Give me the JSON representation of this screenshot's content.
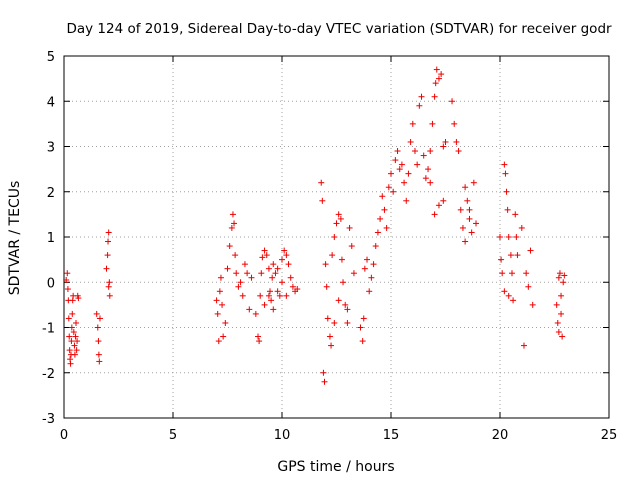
{
  "chart_data": {
    "type": "scatter",
    "title": "Day 124 of 2019, Sidereal Day-to-day VTEC variation (SDTVAR) for receiver godr",
    "xlabel": "GPS time / hours",
    "ylabel": "SDTVAR / TECUs",
    "xlim": [
      0,
      25
    ],
    "ylim": [
      -3,
      5
    ],
    "xticks": [
      0,
      5,
      10,
      15,
      20,
      25
    ],
    "yticks": [
      -3,
      -2,
      -1,
      0,
      1,
      2,
      3,
      4,
      5
    ],
    "grid": true,
    "marker": "+",
    "color": "#ff0000",
    "series": [
      {
        "name": "SDTVAR",
        "points": [
          [
            0.1,
            0.05
          ],
          [
            0.15,
            0.2
          ],
          [
            0.18,
            -0.15
          ],
          [
            0.2,
            -0.4
          ],
          [
            0.22,
            -0.8
          ],
          [
            0.24,
            -1.2
          ],
          [
            0.26,
            -1.5
          ],
          [
            0.28,
            -1.7
          ],
          [
            0.3,
            -1.8
          ],
          [
            0.32,
            -1.6
          ],
          [
            0.34,
            -1.3
          ],
          [
            0.36,
            -1.0
          ],
          [
            0.38,
            -0.7
          ],
          [
            0.4,
            -0.4
          ],
          [
            0.42,
            -0.3
          ],
          [
            0.45,
            -1.1
          ],
          [
            0.48,
            -1.4
          ],
          [
            0.5,
            -1.6
          ],
          [
            0.53,
            -1.2
          ],
          [
            0.55,
            -0.9
          ],
          [
            0.58,
            -1.5
          ],
          [
            0.6,
            -1.3
          ],
          [
            0.63,
            -0.3
          ],
          [
            0.66,
            -0.35
          ],
          [
            1.5,
            -0.7
          ],
          [
            1.55,
            -1.0
          ],
          [
            1.58,
            -1.3
          ],
          [
            1.6,
            -1.6
          ],
          [
            1.62,
            -1.75
          ],
          [
            1.65,
            -0.8
          ],
          [
            1.95,
            0.3
          ],
          [
            2.0,
            0.6
          ],
          [
            2.02,
            0.9
          ],
          [
            2.05,
            1.1
          ],
          [
            2.05,
            -0.1
          ],
          [
            2.08,
            0.0
          ],
          [
            2.1,
            -0.3
          ],
          [
            7.0,
            -0.4
          ],
          [
            7.05,
            -0.7
          ],
          [
            7.1,
            -1.3
          ],
          [
            7.15,
            -0.2
          ],
          [
            7.2,
            0.1
          ],
          [
            7.25,
            -0.5
          ],
          [
            7.3,
            -1.2
          ],
          [
            7.4,
            -0.9
          ],
          [
            7.5,
            0.3
          ],
          [
            7.6,
            0.8
          ],
          [
            7.7,
            1.2
          ],
          [
            7.75,
            1.5
          ],
          [
            7.8,
            1.3
          ],
          [
            7.85,
            0.6
          ],
          [
            7.9,
            0.2
          ],
          [
            8.0,
            -0.1
          ],
          [
            8.1,
            0.0
          ],
          [
            8.2,
            -0.3
          ],
          [
            8.3,
            0.4
          ],
          [
            8.4,
            0.2
          ],
          [
            8.5,
            -0.6
          ],
          [
            8.6,
            0.1
          ],
          [
            8.8,
            -0.7
          ],
          [
            8.9,
            -1.2
          ],
          [
            8.95,
            -1.3
          ],
          [
            9.0,
            -0.3
          ],
          [
            9.05,
            0.2
          ],
          [
            9.1,
            0.55
          ],
          [
            9.2,
            0.7
          ],
          [
            9.3,
            0.6
          ],
          [
            9.4,
            0.3
          ],
          [
            9.45,
            -0.2
          ],
          [
            9.5,
            -0.4
          ],
          [
            9.55,
            0.1
          ],
          [
            9.6,
            0.4
          ],
          [
            9.7,
            0.2
          ],
          [
            9.8,
            -0.2
          ],
          [
            9.9,
            -0.3
          ],
          [
            10.0,
            0.5
          ],
          [
            10.1,
            0.7
          ],
          [
            10.2,
            0.6
          ],
          [
            10.3,
            0.4
          ],
          [
            10.4,
            0.1
          ],
          [
            10.5,
            -0.1
          ],
          [
            10.6,
            -0.2
          ],
          [
            10.7,
            -0.15
          ],
          [
            9.2,
            -0.5
          ],
          [
            9.6,
            -0.6
          ],
          [
            10.2,
            -0.3
          ],
          [
            10.0,
            0.0
          ],
          [
            9.4,
            -0.3
          ],
          [
            9.8,
            0.3
          ],
          [
            11.8,
            2.2
          ],
          [
            11.85,
            1.8
          ],
          [
            11.9,
            -2.0
          ],
          [
            11.95,
            -2.2
          ],
          [
            12.0,
            0.4
          ],
          [
            12.05,
            -0.1
          ],
          [
            12.1,
            -0.8
          ],
          [
            12.2,
            -1.2
          ],
          [
            12.25,
            -1.4
          ],
          [
            12.3,
            0.6
          ],
          [
            12.4,
            1.0
          ],
          [
            12.5,
            1.3
          ],
          [
            12.6,
            1.5
          ],
          [
            12.7,
            1.4
          ],
          [
            12.75,
            0.5
          ],
          [
            12.8,
            0.0
          ],
          [
            12.9,
            -0.5
          ],
          [
            13.0,
            -0.6
          ],
          [
            13.1,
            1.2
          ],
          [
            13.2,
            0.8
          ],
          [
            13.3,
            0.2
          ],
          [
            12.4,
            -0.9
          ],
          [
            12.6,
            -0.4
          ],
          [
            13.0,
            -0.9
          ],
          [
            13.6,
            -1.0
          ],
          [
            13.7,
            -1.3
          ],
          [
            13.75,
            -0.8
          ],
          [
            13.8,
            0.3
          ],
          [
            13.9,
            0.5
          ],
          [
            14.0,
            -0.2
          ],
          [
            14.1,
            0.1
          ],
          [
            14.2,
            0.4
          ],
          [
            14.3,
            0.8
          ],
          [
            14.4,
            1.1
          ],
          [
            14.5,
            1.4
          ],
          [
            14.6,
            1.9
          ],
          [
            14.7,
            1.6
          ],
          [
            14.8,
            1.2
          ],
          [
            14.9,
            2.1
          ],
          [
            15.0,
            2.4
          ],
          [
            15.1,
            2.0
          ],
          [
            15.2,
            2.7
          ],
          [
            15.3,
            2.9
          ],
          [
            15.4,
            2.5
          ],
          [
            15.5,
            2.6
          ],
          [
            15.6,
            2.2
          ],
          [
            15.7,
            1.8
          ],
          [
            15.8,
            2.4
          ],
          [
            15.9,
            3.1
          ],
          [
            16.0,
            3.5
          ],
          [
            16.1,
            2.9
          ],
          [
            16.2,
            2.6
          ],
          [
            16.3,
            3.9
          ],
          [
            16.4,
            4.1
          ],
          [
            16.5,
            2.8
          ],
          [
            16.6,
            2.3
          ],
          [
            16.7,
            2.5
          ],
          [
            16.8,
            2.9
          ],
          [
            16.9,
            3.5
          ],
          [
            17.0,
            4.1
          ],
          [
            17.05,
            4.4
          ],
          [
            17.1,
            4.7
          ],
          [
            17.2,
            4.5
          ],
          [
            17.3,
            4.6
          ],
          [
            17.4,
            3.0
          ],
          [
            17.5,
            3.1
          ],
          [
            17.2,
            1.7
          ],
          [
            17.0,
            1.5
          ],
          [
            16.8,
            2.2
          ],
          [
            17.4,
            1.8
          ],
          [
            17.8,
            4.0
          ],
          [
            17.9,
            3.5
          ],
          [
            18.0,
            3.1
          ],
          [
            18.1,
            2.9
          ],
          [
            18.2,
            1.6
          ],
          [
            18.3,
            1.2
          ],
          [
            18.4,
            2.1
          ],
          [
            18.5,
            1.8
          ],
          [
            18.6,
            1.4
          ],
          [
            18.7,
            1.1
          ],
          [
            18.8,
            2.2
          ],
          [
            18.9,
            1.3
          ],
          [
            18.4,
            0.9
          ],
          [
            18.6,
            1.6
          ],
          [
            20.0,
            1.0
          ],
          [
            20.05,
            0.5
          ],
          [
            20.1,
            0.2
          ],
          [
            20.2,
            2.6
          ],
          [
            20.25,
            2.4
          ],
          [
            20.3,
            2.0
          ],
          [
            20.35,
            1.6
          ],
          [
            20.4,
            1.0
          ],
          [
            20.5,
            0.6
          ],
          [
            20.55,
            0.2
          ],
          [
            20.6,
            -0.4
          ],
          [
            20.7,
            1.5
          ],
          [
            20.75,
            1.0
          ],
          [
            20.8,
            0.6
          ],
          [
            21.0,
            1.2
          ],
          [
            21.1,
            -1.4
          ],
          [
            21.2,
            0.2
          ],
          [
            21.3,
            -0.1
          ],
          [
            21.4,
            0.7
          ],
          [
            21.5,
            -0.5
          ],
          [
            20.2,
            -0.2
          ],
          [
            20.4,
            -0.3
          ],
          [
            22.6,
            -0.5
          ],
          [
            22.65,
            -0.9
          ],
          [
            22.7,
            -1.1
          ],
          [
            22.75,
            0.2
          ],
          [
            22.8,
            -0.7
          ],
          [
            22.85,
            -1.2
          ],
          [
            22.9,
            0.0
          ],
          [
            22.95,
            0.15
          ],
          [
            22.7,
            0.1
          ],
          [
            22.8,
            -0.3
          ]
        ]
      }
    ]
  }
}
